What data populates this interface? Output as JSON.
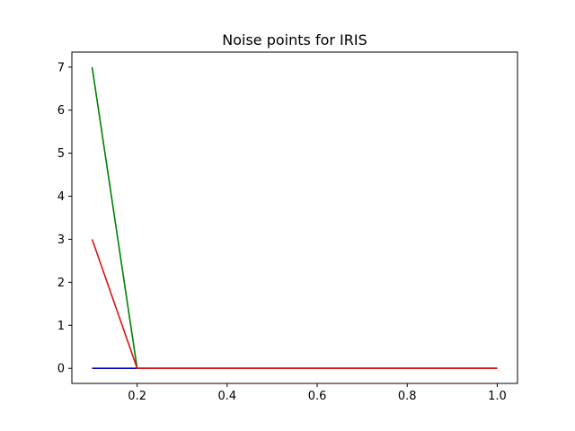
{
  "chart_data": {
    "type": "line",
    "title": "Noise points for IRIS",
    "xlabel": "",
    "ylabel": "",
    "xlim": [
      0.055,
      1.045
    ],
    "ylim": [
      -0.35,
      7.35
    ],
    "xticks": [
      0.2,
      0.4,
      0.6,
      0.8,
      1.0
    ],
    "xtick_labels": [
      "0.2",
      "0.4",
      "0.6",
      "0.8",
      "1.0"
    ],
    "yticks": [
      0,
      1,
      2,
      3,
      4,
      5,
      6,
      7
    ],
    "ytick_labels": [
      "0",
      "1",
      "2",
      "3",
      "4",
      "5",
      "6",
      "7"
    ],
    "grid": false,
    "legend": false,
    "x": [
      0.1,
      0.2,
      0.3,
      0.4,
      0.5,
      0.6,
      0.7,
      0.8,
      0.9,
      1.0
    ],
    "series": [
      {
        "color": "#0000bf",
        "values": [
          0,
          0,
          0,
          0,
          0,
          0,
          0,
          0,
          0,
          0
        ]
      },
      {
        "color": "#008000",
        "values": [
          7,
          0,
          0,
          0,
          0,
          0,
          0,
          0,
          0,
          0
        ]
      },
      {
        "color": "#dd1111",
        "values": [
          3,
          0,
          0,
          0,
          0,
          0,
          0,
          0,
          0,
          0
        ]
      }
    ]
  }
}
